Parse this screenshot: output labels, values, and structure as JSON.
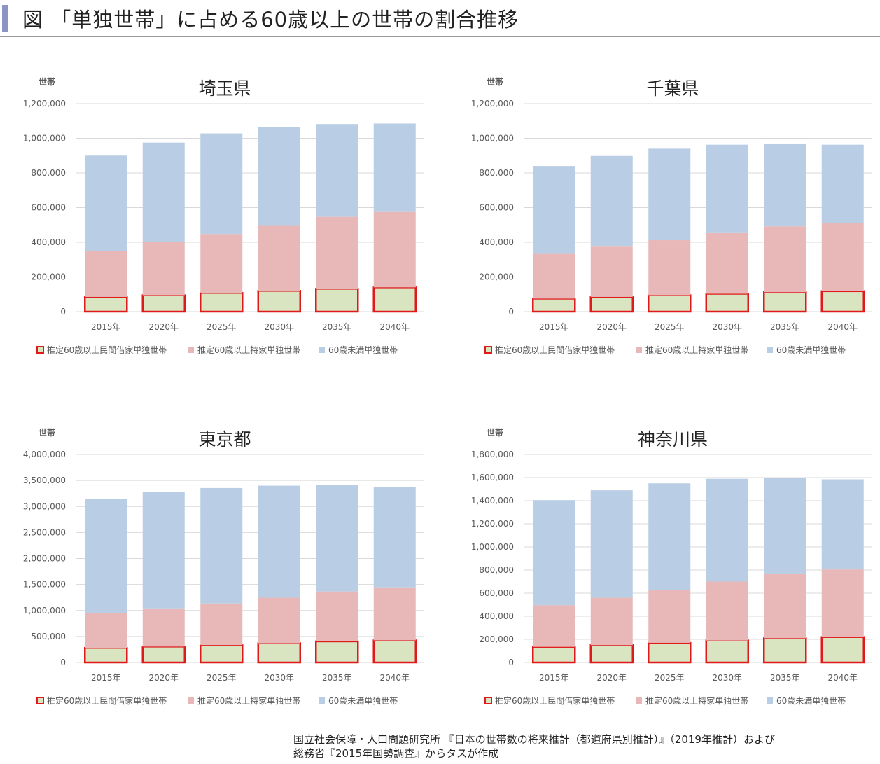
{
  "page": {
    "title": "図 「単独世帯」に占める60歳以上の世帯の割合推移",
    "source_line1": "国立社会保障・人口問題研究所 『日本の世帯数の将来推計（都道府県別推計）』（2019年推計）および",
    "source_line2": "総務省『2015年国勢調査』からタスが作成"
  },
  "colors": {
    "rental": "#d9e4c0",
    "rental_border": "#e01a1a",
    "owned": "#e8b7b7",
    "under60": "#b9cde4",
    "grid": "#d9d9d9",
    "axis_text": "#595959"
  },
  "chart_data": [
    {
      "type": "bar",
      "stacked": true,
      "title": "埼玉県",
      "ylabel": "世帯",
      "ylim": [
        0,
        1200000
      ],
      "yticks": [
        "0",
        "200,000",
        "400,000",
        "600,000",
        "800,000",
        "1,000,000",
        "1,200,000"
      ],
      "categories": [
        "2015年",
        "2020年",
        "2025年",
        "2030年",
        "2035年",
        "2040年"
      ],
      "series": [
        {
          "name": "推定60歳以上民間借家単独世帯",
          "values": [
            85000,
            95000,
            108000,
            120000,
            132000,
            140000
          ]
        },
        {
          "name": "推定60歳以上持家単独世帯",
          "values": [
            265000,
            305000,
            340000,
            375000,
            415000,
            435000
          ]
        },
        {
          "name": "60歳未満単独世帯",
          "values": [
            550000,
            575000,
            580000,
            570000,
            535000,
            510000
          ]
        }
      ],
      "legend": "bottom",
      "grid": true
    },
    {
      "type": "bar",
      "stacked": true,
      "title": "千葉県",
      "ylabel": "世帯",
      "ylim": [
        0,
        1200000
      ],
      "yticks": [
        "0",
        "200,000",
        "400,000",
        "600,000",
        "800,000",
        "1,000,000",
        "1,200,000"
      ],
      "categories": [
        "2015年",
        "2020年",
        "2025年",
        "2030年",
        "2035年",
        "2040年"
      ],
      "series": [
        {
          "name": "推定60歳以上民間借家単独世帯",
          "values": [
            75000,
            85000,
            95000,
            103000,
            112000,
            118000
          ]
        },
        {
          "name": "推定60歳以上持家単独世帯",
          "values": [
            258000,
            290000,
            317000,
            350000,
            380000,
            393000
          ]
        },
        {
          "name": "60歳未満単独世帯",
          "values": [
            507000,
            523000,
            528000,
            510000,
            478000,
            452000
          ]
        }
      ],
      "legend": "bottom",
      "grid": true
    },
    {
      "type": "bar",
      "stacked": true,
      "title": "東京都",
      "ylabel": "世帯",
      "ylim": [
        0,
        4000000
      ],
      "yticks": [
        "0",
        "500,000",
        "1,000,000",
        "1,500,000",
        "2,000,000",
        "2,500,000",
        "3,000,000",
        "3,500,000",
        "4,000,000"
      ],
      "categories": [
        "2015年",
        "2020年",
        "2025年",
        "2030年",
        "2035年",
        "2040年"
      ],
      "series": [
        {
          "name": "推定60歳以上民間借家単独世帯",
          "values": [
            280000,
            305000,
            335000,
            370000,
            405000,
            425000
          ]
        },
        {
          "name": "推定60歳以上持家単独世帯",
          "values": [
            670000,
            735000,
            800000,
            875000,
            960000,
            1020000
          ]
        },
        {
          "name": "60歳未満単独世帯",
          "values": [
            2200000,
            2245000,
            2220000,
            2155000,
            2045000,
            1925000
          ]
        }
      ],
      "legend": "bottom",
      "grid": true
    },
    {
      "type": "bar",
      "stacked": true,
      "title": "神奈川県",
      "ylabel": "世帯",
      "ylim": [
        0,
        1800000
      ],
      "yticks": [
        "0",
        "200,000",
        "400,000",
        "600,000",
        "800,000",
        "1,000,000",
        "1,200,000",
        "1,400,000",
        "1,600,000",
        "1,800,000"
      ],
      "categories": [
        "2015年",
        "2020年",
        "2025年",
        "2030年",
        "2035年",
        "2040年"
      ],
      "series": [
        {
          "name": "推定60歳以上民間借家単独世帯",
          "values": [
            135000,
            150000,
            170000,
            190000,
            210000,
            220000
          ]
        },
        {
          "name": "推定60歳以上持家単独世帯",
          "values": [
            360000,
            410000,
            455000,
            510000,
            560000,
            585000
          ]
        },
        {
          "name": "60歳未満単独世帯",
          "values": [
            910000,
            930000,
            925000,
            890000,
            830000,
            780000
          ]
        }
      ],
      "legend": "bottom",
      "grid": true
    }
  ]
}
